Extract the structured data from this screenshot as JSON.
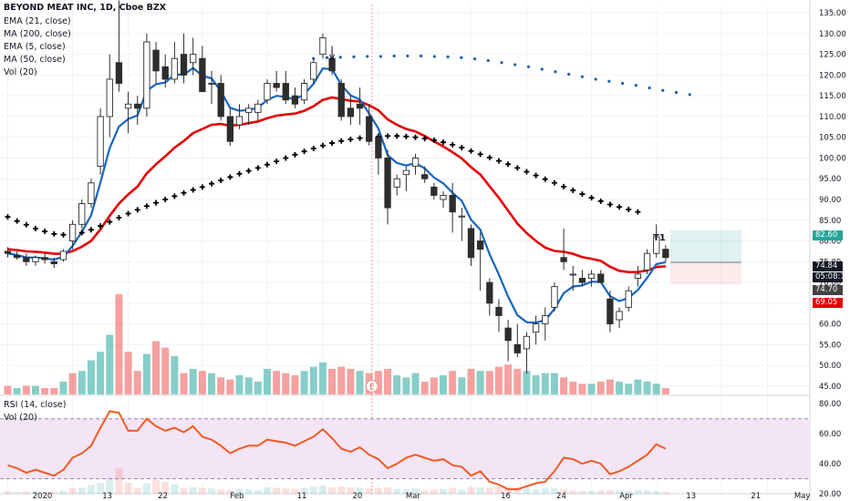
{
  "header": {
    "title": "BEYOND MEAT INC, 1D, Cboe BZX",
    "indicators": [
      "EMA (21, close)",
      "MA (200, close)",
      "EMA (5, close)",
      "MA (50, close)",
      "Vol (20)"
    ]
  },
  "rsi_pane": {
    "label": "RSI (14, close)",
    "vol_label": "Vol (20)"
  },
  "price_tags": {
    "t1": "82.60",
    "last": "74.84",
    "countdown": "05:08:15",
    "stop": "74.70",
    "ma": "69.05"
  },
  "markers": {
    "target_label": "T1",
    "earnings_label": "E"
  },
  "colors": {
    "up": "#26a69a",
    "down": "#ef5350",
    "candle_up_body": "#ffffff",
    "candle_down_body": "#2d2d2d",
    "ema5": "#1565c0",
    "ema21": "#e50000",
    "ma200": "#000000",
    "ma50": "#1e5fb3",
    "rsi": "#f15a22",
    "rsi_band": "#f3e5f5"
  },
  "chart_data": [
    {
      "type": "candlestick",
      "title": "BEYOND MEAT INC, 1D, Cboe BZX",
      "x": [
        "2020-01-02",
        "2020-01-03",
        "2020-01-06",
        "2020-01-07",
        "2020-01-08",
        "2020-01-09",
        "2020-01-10",
        "2020-01-13",
        "2020-01-14",
        "2020-01-15",
        "2020-01-16",
        "2020-01-17",
        "2020-01-21",
        "2020-01-22",
        "2020-01-23",
        "2020-01-24",
        "2020-01-27",
        "2020-01-28",
        "2020-01-29",
        "2020-01-30",
        "2020-01-31",
        "2020-02-03",
        "2020-02-04",
        "2020-02-05",
        "2020-02-06",
        "2020-02-07",
        "2020-02-10",
        "2020-02-11",
        "2020-02-12",
        "2020-02-13",
        "2020-02-14",
        "2020-02-18",
        "2020-02-19",
        "2020-02-20",
        "2020-02-21",
        "2020-02-24",
        "2020-02-25",
        "2020-02-26",
        "2020-02-27",
        "2020-02-28",
        "2020-03-02",
        "2020-03-03",
        "2020-03-04",
        "2020-03-05",
        "2020-03-06",
        "2020-03-09",
        "2020-03-10",
        "2020-03-11",
        "2020-03-12",
        "2020-03-13",
        "2020-03-16",
        "2020-03-17",
        "2020-03-18",
        "2020-03-19",
        "2020-03-20",
        "2020-03-23",
        "2020-03-24",
        "2020-03-25",
        "2020-03-26",
        "2020-03-27",
        "2020-03-30",
        "2020-03-31",
        "2020-04-01",
        "2020-04-02",
        "2020-04-03",
        "2020-04-06",
        "2020-04-07",
        "2020-04-08",
        "2020-04-09",
        "2020-04-13",
        "2020-04-14",
        "2020-04-15"
      ],
      "ohlc": [
        [
          77.5,
          78.5,
          76.0,
          77.0
        ],
        [
          76.5,
          77.5,
          75.5,
          76.0
        ],
        [
          76.0,
          77.0,
          74.0,
          75.0
        ],
        [
          75.0,
          76.5,
          74.0,
          76.0
        ],
        [
          76.0,
          77.0,
          74.5,
          75.5
        ],
        [
          75.0,
          76.0,
          73.5,
          74.5
        ],
        [
          75.5,
          78.0,
          75.0,
          77.5
        ],
        [
          80.0,
          85.0,
          78.0,
          84.0
        ],
        [
          84.0,
          90.0,
          83.0,
          89.0
        ],
        [
          89.0,
          95.0,
          88.0,
          94.0
        ],
        [
          98.0,
          112.0,
          96.0,
          110.0
        ],
        [
          110.0,
          125.0,
          105.0,
          119.0
        ],
        [
          123.0,
          138.0,
          116.0,
          118.0
        ],
        [
          112.0,
          116.0,
          106.0,
          113.0
        ],
        [
          113.0,
          115.0,
          108.0,
          112.0
        ],
        [
          112.0,
          130.0,
          110.0,
          128.0
        ],
        [
          126.0,
          128.0,
          118.0,
          121.0
        ],
        [
          122.0,
          125.0,
          117.0,
          119.0
        ],
        [
          119.0,
          128.0,
          118.0,
          124.0
        ],
        [
          125.0,
          130.0,
          118.0,
          120.0
        ],
        [
          123.0,
          129.0,
          120.0,
          125.0
        ],
        [
          124.0,
          127.0,
          116.0,
          116.0
        ],
        [
          118.0,
          121.0,
          113.0,
          118.0
        ],
        [
          118.0,
          120.0,
          109.0,
          110.0
        ],
        [
          110.0,
          112.0,
          103.0,
          104.0
        ],
        [
          108.0,
          113.0,
          107.0,
          110.0
        ],
        [
          111.0,
          113.0,
          108.0,
          112.0
        ],
        [
          111.0,
          114.0,
          109.0,
          113.0
        ],
        [
          114.0,
          119.0,
          113.0,
          118.0
        ],
        [
          118.0,
          121.0,
          116.0,
          117.0
        ],
        [
          118.0,
          121.0,
          113.0,
          114.0
        ],
        [
          115.0,
          117.0,
          112.0,
          113.0
        ],
        [
          114.0,
          119.0,
          113.0,
          118.0
        ],
        [
          119.0,
          124.0,
          118.0,
          123.0
        ],
        [
          125.0,
          130.0,
          124.0,
          129.0
        ],
        [
          124.0,
          126.0,
          120.0,
          121.0
        ],
        [
          118.0,
          119.0,
          109.0,
          110.0
        ],
        [
          112.0,
          115.0,
          108.0,
          110.0
        ],
        [
          113.0,
          117.0,
          108.0,
          112.0
        ],
        [
          110.0,
          113.0,
          103.0,
          104.0
        ],
        [
          105.0,
          106.0,
          96.0,
          100.0
        ],
        [
          100.0,
          102.0,
          84.0,
          88.0
        ],
        [
          93.0,
          96.0,
          91.0,
          95.0
        ],
        [
          96.0,
          98.0,
          92.0,
          97.0
        ],
        [
          98.0,
          101.0,
          96.0,
          100.0
        ],
        [
          96.0,
          98.0,
          94.0,
          95.0
        ],
        [
          93.0,
          94.0,
          90.0,
          91.0
        ],
        [
          90.0,
          92.0,
          88.0,
          91.0
        ],
        [
          91.0,
          94.0,
          82.0,
          87.0
        ],
        [
          86.0,
          88.0,
          80.0,
          86.0
        ],
        [
          83.0,
          84.0,
          74.0,
          76.0
        ],
        [
          80.0,
          82.0,
          68.0,
          78.0
        ],
        [
          70.0,
          71.0,
          62.0,
          65.0
        ],
        [
          64.0,
          66.0,
          58.0,
          62.0
        ],
        [
          59.0,
          61.0,
          51.0,
          56.0
        ],
        [
          55.0,
          60.0,
          52.0,
          53.0
        ],
        [
          54.0,
          58.0,
          48.0,
          57.0
        ],
        [
          58.0,
          62.0,
          55.0,
          60.0
        ],
        [
          60.0,
          64.0,
          56.0,
          62.0
        ],
        [
          64.0,
          70.0,
          63.0,
          69.0
        ],
        [
          76.0,
          83.0,
          73.0,
          75.0
        ],
        [
          72.0,
          74.0,
          68.0,
          72.0
        ],
        [
          71.0,
          73.0,
          69.0,
          70.0
        ],
        [
          71.0,
          73.0,
          69.0,
          72.0
        ],
        [
          72.0,
          73.0,
          70.0,
          70.0
        ],
        [
          66.0,
          68.0,
          58.0,
          60.0
        ],
        [
          61.0,
          64.0,
          59.0,
          63.0
        ],
        [
          64.0,
          69.0,
          63.0,
          68.0
        ],
        [
          71.0,
          74.0,
          69.0,
          72.0
        ],
        [
          73.0,
          78.0,
          72.0,
          77.0
        ],
        [
          77.0,
          84.0,
          76.0,
          81.0
        ],
        [
          78.0,
          79.0,
          75.0,
          76.0
        ]
      ],
      "volume": [
        4,
        3,
        4,
        4,
        3,
        3,
        6,
        10,
        11,
        16,
        20,
        28,
        47,
        20,
        11,
        19,
        25,
        22,
        18,
        10,
        12,
        11,
        10,
        8,
        7,
        9,
        8,
        6,
        12,
        11,
        10,
        9,
        11,
        13,
        15,
        12,
        13,
        12,
        11,
        10,
        11,
        12,
        9,
        8,
        10,
        6,
        8,
        9,
        11,
        8,
        12,
        11,
        11,
        13,
        14,
        12,
        11,
        9,
        10,
        10,
        8,
        6,
        5,
        5,
        6,
        7,
        6,
        5,
        7,
        6,
        5,
        3
      ],
      "volume_up": [
        false,
        true,
        false,
        true,
        false,
        false,
        true,
        false,
        true,
        true,
        true,
        true,
        false,
        false,
        false,
        true,
        false,
        false,
        true,
        false,
        true,
        false,
        true,
        false,
        false,
        true,
        true,
        true,
        true,
        false,
        false,
        false,
        true,
        true,
        true,
        false,
        false,
        false,
        true,
        false,
        false,
        false,
        true,
        true,
        true,
        false,
        false,
        true,
        false,
        true,
        false,
        true,
        false,
        false,
        false,
        false,
        true,
        true,
        true,
        true,
        false,
        false,
        false,
        true,
        false,
        false,
        true,
        true,
        true,
        true,
        true,
        false
      ],
      "ema5": [
        77.0,
        76.6,
        76.0,
        76.0,
        75.8,
        75.5,
        76.2,
        78.8,
        82.2,
        86.2,
        94.1,
        102.4,
        107.6,
        109.4,
        110.3,
        116.2,
        117.8,
        118.2,
        120.1,
        120.1,
        121.7,
        119.8,
        119.2,
        116.1,
        112.1,
        111.4,
        111.6,
        112.1,
        114.0,
        115.0,
        114.7,
        114.1,
        115.4,
        117.9,
        121.6,
        121.4,
        117.6,
        115.1,
        114.1,
        110.7,
        107.1,
        100.7,
        98.8,
        98.2,
        98.8,
        97.5,
        95.3,
        93.9,
        91.6,
        89.7,
        85.1,
        82.7,
        76.8,
        71.9,
        66.6,
        62.1,
        60.4,
        60.3,
        60.9,
        63.6,
        67.4,
        69.0,
        69.3,
        70.2,
        70.1,
        66.7,
        65.5,
        66.3,
        68.2,
        71.1,
        74.4,
        74.9
      ],
      "ema21": [
        78.0,
        77.8,
        77.5,
        77.4,
        77.2,
        76.9,
        76.9,
        77.6,
        78.6,
        80.0,
        82.8,
        86.1,
        89.0,
        91.2,
        93.1,
        96.3,
        98.5,
        100.4,
        102.5,
        104.1,
        106.0,
        107.0,
        108.0,
        108.2,
        107.8,
        108.0,
        108.4,
        108.8,
        109.6,
        110.2,
        110.5,
        110.7,
        111.4,
        112.5,
        114.0,
        114.6,
        114.2,
        113.8,
        113.6,
        112.7,
        111.5,
        109.3,
        108.0,
        107.0,
        106.4,
        105.3,
        104.0,
        102.8,
        101.4,
        99.9,
        97.8,
        96.0,
        93.2,
        90.4,
        87.3,
        84.2,
        81.9,
        80.0,
        78.4,
        77.6,
        77.4,
        76.9,
        76.1,
        75.7,
        75.2,
        73.8,
        72.8,
        72.5,
        72.5,
        72.9,
        73.7,
        73.9
      ],
      "ma200": [
        85.8,
        84.8,
        83.9,
        83.0,
        82.3,
        81.7,
        81.5,
        81.6,
        82.0,
        82.7,
        83.6,
        84.6,
        85.6,
        86.6,
        87.5,
        88.4,
        89.2,
        90.0,
        90.8,
        91.6,
        92.3,
        93.0,
        93.8,
        94.6,
        95.4,
        96.2,
        96.9,
        97.6,
        98.4,
        99.2,
        100.0,
        100.8,
        101.6,
        102.3,
        103.0,
        103.6,
        104.1,
        104.5,
        104.8,
        105.0,
        105.2,
        105.3,
        105.3,
        105.2,
        105.0,
        104.7,
        104.3,
        103.8,
        103.2,
        102.5,
        101.7,
        100.9,
        100.1,
        99.3,
        98.5,
        97.6,
        96.7,
        95.8,
        94.9,
        94.0,
        93.1,
        92.2,
        91.3,
        90.4,
        89.6,
        88.8,
        88.2,
        87.6,
        87.0
      ],
      "ma200_x_offset": 0,
      "ma50": [
        124.0,
        124.2,
        124.3,
        124.4,
        124.5,
        124.5,
        124.6,
        124.6,
        124.6,
        124.5,
        124.4,
        124.2,
        123.9,
        123.5,
        123.0,
        122.5,
        122.0,
        121.4,
        120.8,
        120.2,
        119.6,
        119.0,
        118.5,
        118.0,
        117.5,
        116.9,
        116.3,
        115.8,
        115.3
      ],
      "ylim": [
        43,
        137
      ]
    },
    {
      "type": "line",
      "title": "RSI (14, close)",
      "values": [
        39,
        37,
        34,
        36,
        34,
        32,
        36,
        44,
        47,
        52,
        64,
        75,
        74,
        62,
        62,
        70,
        65,
        62,
        64,
        61,
        65,
        58,
        56,
        52,
        47,
        50,
        52,
        52,
        56,
        55,
        54,
        52,
        55,
        58,
        63,
        57,
        50,
        48,
        51,
        46,
        43,
        37,
        40,
        44,
        46,
        44,
        42,
        43,
        39,
        38,
        32,
        35,
        28,
        26,
        23,
        23,
        25,
        27,
        28,
        35,
        44,
        43,
        40,
        42,
        40,
        33,
        35,
        38,
        42,
        46,
        53,
        50
      ],
      "ylim": [
        20,
        85
      ],
      "bands": [
        30,
        70
      ]
    }
  ],
  "axis": {
    "y_ticks": [
      "135.00",
      "130.00",
      "125.00",
      "120.00",
      "115.00",
      "110.00",
      "105.00",
      "100.00",
      "95.00",
      "90.00",
      "85.00",
      "80.00",
      "75.00",
      "70.00",
      "65.00",
      "60.00",
      "55.00",
      "50.00",
      "45.00"
    ],
    "y_tick_values": [
      135,
      130,
      125,
      120,
      115,
      110,
      105,
      100,
      95,
      90,
      85,
      80,
      75,
      70,
      65,
      60,
      55,
      50,
      45
    ],
    "rsi_ticks": [
      "80.00",
      "60.00",
      "40.00",
      "20.00"
    ],
    "rsi_tick_values": [
      80,
      60,
      40,
      20
    ],
    "x_labels": [
      "2020",
      "13",
      "22",
      "Feb",
      "11",
      "20",
      "Mar",
      "16",
      "24",
      "Apr",
      "13",
      "21",
      "May"
    ],
    "x_label_bar_index": [
      0,
      7,
      13,
      21,
      28,
      34,
      40,
      50,
      56,
      63,
      70,
      77,
      82
    ]
  }
}
